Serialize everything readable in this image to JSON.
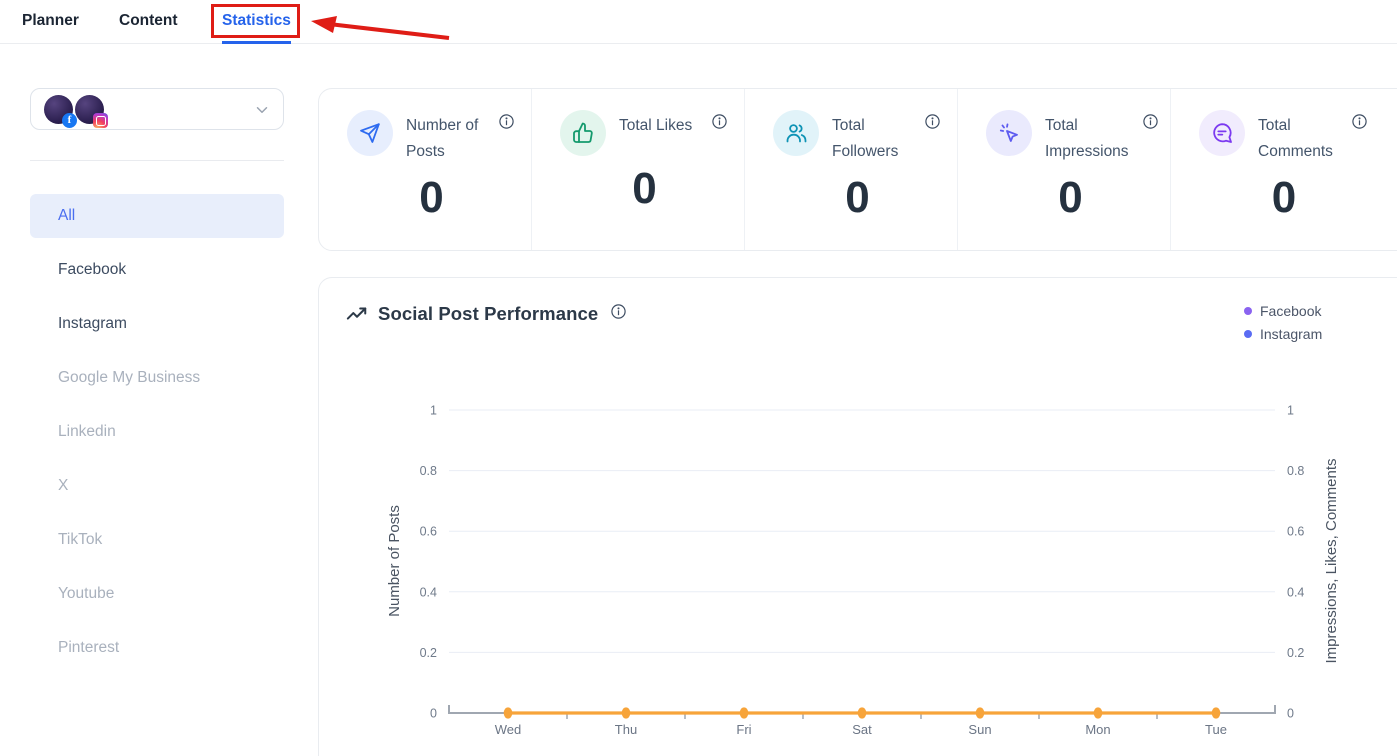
{
  "nav": {
    "tabs": [
      {
        "label": "Planner",
        "active": false
      },
      {
        "label": "Content",
        "active": false
      },
      {
        "label": "Statistics",
        "active": true
      }
    ],
    "active_color": "#2563eb",
    "annotation_color": "#df1d16"
  },
  "sidebar": {
    "account_selector": {
      "accounts": [
        {
          "network": "Facebook"
        },
        {
          "network": "Instagram"
        }
      ]
    },
    "items": [
      {
        "label": "All",
        "state": "selected"
      },
      {
        "label": "Facebook",
        "state": "enabled"
      },
      {
        "label": "Instagram",
        "state": "enabled"
      },
      {
        "label": "Google My Business",
        "state": "disabled"
      },
      {
        "label": "Linkedin",
        "state": "disabled"
      },
      {
        "label": "X",
        "state": "disabled"
      },
      {
        "label": "TikTok",
        "state": "disabled"
      },
      {
        "label": "Youtube",
        "state": "disabled"
      },
      {
        "label": "Pinterest",
        "state": "disabled"
      }
    ]
  },
  "stats": {
    "cards": [
      {
        "label": "Number of Posts",
        "value": "0",
        "icon": "paper-plane-icon",
        "color": "#2e6bf0",
        "bg": "#e7eefd"
      },
      {
        "label": "Total Likes",
        "value": "0",
        "icon": "thumbs-up-icon",
        "color": "#149a6d",
        "bg": "#e3f5ed"
      },
      {
        "label": "Total Followers",
        "value": "0",
        "icon": "followers-icon",
        "color": "#0e93b5",
        "bg": "#e1f3f9"
      },
      {
        "label": "Total Impressions",
        "value": "0",
        "icon": "click-cursor-icon",
        "color": "#5d5bf0",
        "bg": "#eaeafd"
      },
      {
        "label": "Total Comments",
        "value": "0",
        "icon": "chat-bubble-icon",
        "color": "#7c3af0",
        "bg": "#f1ecfd"
      }
    ]
  },
  "chart_data": {
    "type": "line",
    "title": "Social Post Performance",
    "categories": [
      "Wed",
      "Thu",
      "Fri",
      "Sat",
      "Sun",
      "Mon",
      "Tue"
    ],
    "series": [
      {
        "name": "Facebook",
        "color": "#8a63f0",
        "values": [
          0,
          0,
          0,
          0,
          0,
          0,
          0
        ]
      },
      {
        "name": "Instagram",
        "color": "#5a6cf3",
        "values": [
          0,
          0,
          0,
          0,
          0,
          0,
          0
        ]
      }
    ],
    "rendered_line": {
      "color": "#f7a43a",
      "values": [
        0,
        0,
        0,
        0,
        0,
        0,
        0
      ]
    },
    "y_left": {
      "label": "Number of Posts",
      "ticks": [
        "0",
        "0.2",
        "0.4",
        "0.6",
        "0.8",
        "1"
      ],
      "range": [
        0,
        1
      ]
    },
    "y_right": {
      "label": "Impressions, Likes, Comments",
      "ticks": [
        "0",
        "0.2",
        "0.4",
        "0.6",
        "0.8",
        "1"
      ],
      "range": [
        0,
        1
      ]
    },
    "legend": {
      "position": "top-right",
      "entries": [
        {
          "label": "Facebook",
          "color": "#8a63f0"
        },
        {
          "label": "Instagram",
          "color": "#5a6cf3"
        }
      ]
    },
    "grid": true
  }
}
